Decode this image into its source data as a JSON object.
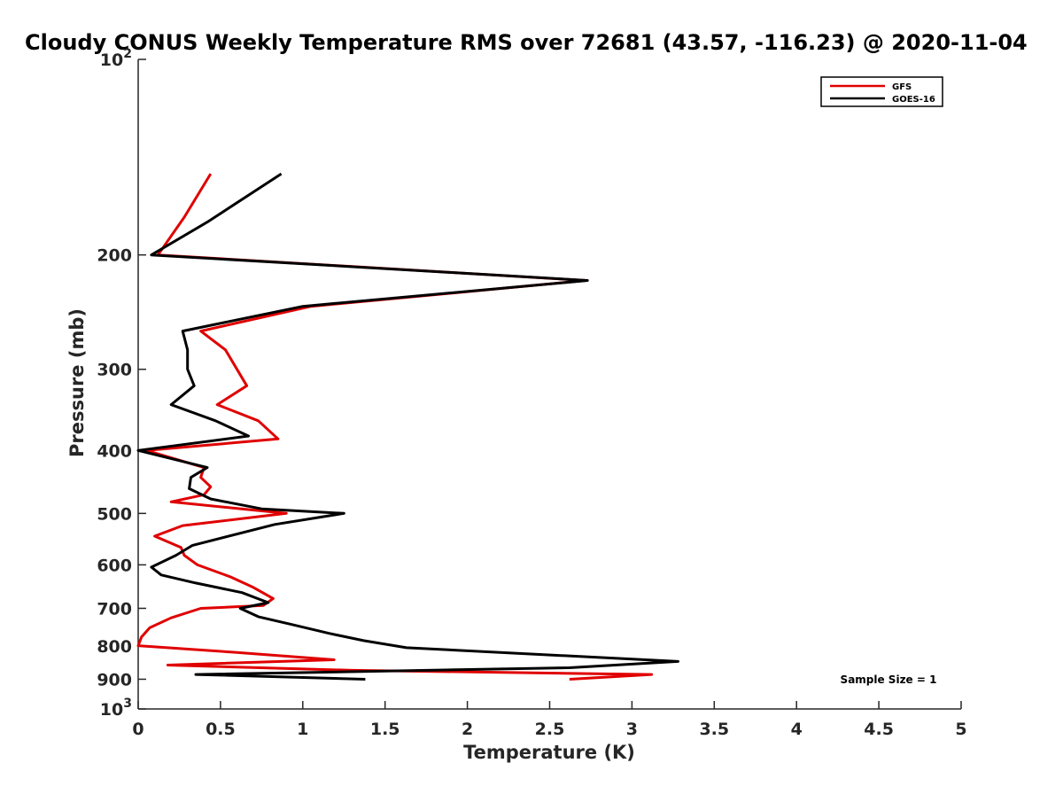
{
  "chart_data": {
    "type": "line",
    "title": "Cloudy CONUS Weekly Temperature RMS over 72681 (43.57, -116.23) @ 2020-11-04",
    "xlabel": "Temperature (K)",
    "ylabel": "Pressure (mb)",
    "xlim": [
      0,
      5
    ],
    "ylim": [
      100,
      1000
    ],
    "yscale": "log",
    "y_reversed": true,
    "grid": false,
    "legend_position": "top-right",
    "x_ticks": [
      0,
      0.5,
      1,
      1.5,
      2,
      2.5,
      3,
      3.5,
      4,
      4.5,
      5
    ],
    "x_tick_labels": [
      "0",
      "0.5",
      "1",
      "1.5",
      "2",
      "2.5",
      "3",
      "3.5",
      "4",
      "4.5",
      "5"
    ],
    "y_ticks": [
      100,
      200,
      300,
      400,
      500,
      600,
      700,
      800,
      900,
      1000
    ],
    "y_tick_labels": [
      {
        "base": "10",
        "exp": "2"
      },
      {
        "base": "200",
        "exp": ""
      },
      {
        "base": "300",
        "exp": ""
      },
      {
        "base": "400",
        "exp": ""
      },
      {
        "base": "500",
        "exp": ""
      },
      {
        "base": "600",
        "exp": ""
      },
      {
        "base": "700",
        "exp": ""
      },
      {
        "base": "800",
        "exp": ""
      },
      {
        "base": "900",
        "exp": ""
      },
      {
        "base": "10",
        "exp": "3"
      }
    ],
    "annotation": "Sample Size = 1",
    "series": [
      {
        "name": "GFS",
        "color": "#e00000",
        "points": [
          [
            0.44,
            150
          ],
          [
            0.28,
            175
          ],
          [
            0.12,
            200
          ],
          [
            2.72,
            219
          ],
          [
            1.05,
            240
          ],
          [
            0.38,
            262
          ],
          [
            0.53,
            280
          ],
          [
            0.6,
            300
          ],
          [
            0.66,
            318
          ],
          [
            0.48,
            340
          ],
          [
            0.73,
            360
          ],
          [
            0.85,
            384
          ],
          [
            0.05,
            400
          ],
          [
            0.4,
            425
          ],
          [
            0.38,
            440
          ],
          [
            0.44,
            455
          ],
          [
            0.4,
            468
          ],
          [
            0.2,
            480
          ],
          [
            0.9,
            500
          ],
          [
            0.27,
            522
          ],
          [
            0.1,
            542
          ],
          [
            0.26,
            564
          ],
          [
            0.28,
            580
          ],
          [
            0.36,
            600
          ],
          [
            0.56,
            626
          ],
          [
            0.7,
            650
          ],
          [
            0.82,
            676
          ],
          [
            0.76,
            693
          ],
          [
            0.38,
            700
          ],
          [
            0.2,
            724
          ],
          [
            0.07,
            750
          ],
          [
            0.02,
            775
          ],
          [
            0.0,
            799
          ],
          [
            0.58,
            818
          ],
          [
            1.19,
            840
          ],
          [
            0.18,
            856
          ],
          [
            1.3,
            872
          ],
          [
            3.12,
            885
          ],
          [
            2.62,
            900
          ]
        ]
      },
      {
        "name": "GOES-16",
        "color": "#000000",
        "points": [
          [
            0.87,
            150
          ],
          [
            0.42,
            178
          ],
          [
            0.08,
            200
          ],
          [
            2.73,
            219
          ],
          [
            1.0,
            240
          ],
          [
            0.27,
            262
          ],
          [
            0.3,
            280
          ],
          [
            0.3,
            300
          ],
          [
            0.34,
            318
          ],
          [
            0.2,
            340
          ],
          [
            0.47,
            360
          ],
          [
            0.67,
            380
          ],
          [
            0.0,
            400
          ],
          [
            0.42,
            425
          ],
          [
            0.32,
            440
          ],
          [
            0.31,
            458
          ],
          [
            0.44,
            475
          ],
          [
            0.75,
            492
          ],
          [
            1.25,
            500
          ],
          [
            0.83,
            520
          ],
          [
            0.33,
            560
          ],
          [
            0.23,
            580
          ],
          [
            0.08,
            605
          ],
          [
            0.14,
            622
          ],
          [
            0.35,
            640
          ],
          [
            0.63,
            662
          ],
          [
            0.79,
            686
          ],
          [
            0.62,
            700
          ],
          [
            0.73,
            721
          ],
          [
            0.93,
            741
          ],
          [
            1.16,
            765
          ],
          [
            1.37,
            785
          ],
          [
            1.63,
            805
          ],
          [
            3.28,
            845
          ],
          [
            2.62,
            864
          ],
          [
            0.35,
            885
          ],
          [
            1.38,
            900
          ]
        ]
      }
    ]
  }
}
